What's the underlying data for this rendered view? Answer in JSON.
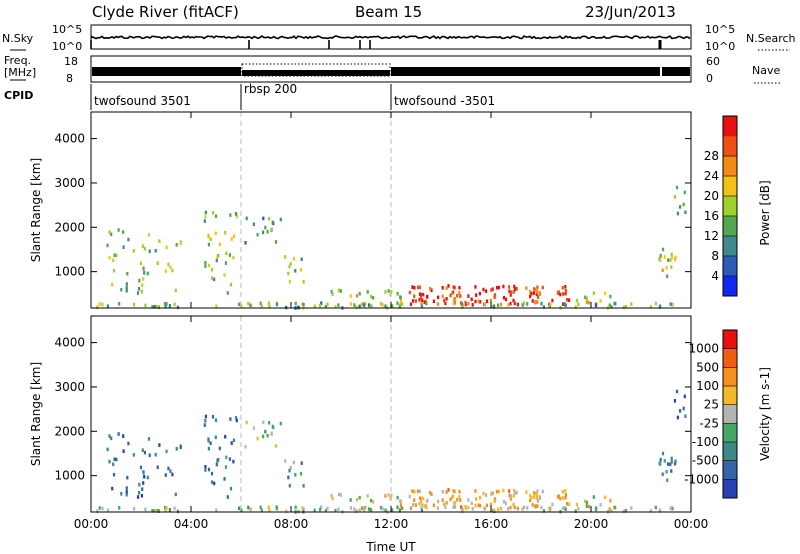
{
  "header": {
    "station": "Clyde River (fitACF)",
    "beam": "Beam 15",
    "date": "23/Jun/2013"
  },
  "panels": {
    "nsky_label": "N.Sky",
    "nsearch_label": "N.Search",
    "freq_label_line1": "Freq.",
    "freq_label_line2": "[MHz]",
    "nave_label": "Nave",
    "cpid_label": "CPID",
    "nsky_ticks": [
      "10^5",
      "10^0"
    ],
    "nsearch_ticks": [
      "10^5",
      "10^0"
    ],
    "freq_ticks": [
      "18",
      "8"
    ],
    "nave_ticks": [
      "60",
      "0"
    ],
    "cpid_segments": [
      {
        "label": "twofsound 3501",
        "start_hour": 0
      },
      {
        "label": "rbsp 200",
        "start_hour": 6
      },
      {
        "label": "twofsound -3501",
        "start_hour": 12
      }
    ]
  },
  "chart_data": [
    {
      "type": "heatmap",
      "name": "power",
      "ylabel": "Slant Range [km]",
      "xlabel": "",
      "xlim": [
        0,
        24
      ],
      "ylim": [
        180,
        4600
      ],
      "yticks": [
        "1000",
        "2000",
        "3000",
        "4000"
      ],
      "colorbar_label": "Power [dB]",
      "colorbar_ticks": [
        "4",
        "8",
        "12",
        "16",
        "20",
        "24",
        "28"
      ],
      "colorbar_colors": [
        "#1028f0",
        "#2a5cb8",
        "#3f8a8c",
        "#52a850",
        "#9ed12a",
        "#f2c21a",
        "#f58a12",
        "#ee5014",
        "#e81010"
      ]
    },
    {
      "type": "heatmap",
      "name": "velocity",
      "ylabel": "Slant Range [km]",
      "xlabel": "Time UT",
      "xlim": [
        0,
        24
      ],
      "ylim": [
        180,
        4600
      ],
      "yticks": [
        "1000",
        "2000",
        "3000",
        "4000"
      ],
      "xticks": [
        "00:00",
        "04:00",
        "08:00",
        "12:00",
        "16:00",
        "20:00",
        "00:00"
      ],
      "colorbar_label": "Velocity [m s-1]",
      "colorbar_ticks": [
        "1000",
        "500",
        "100",
        "25",
        "-25",
        "-100",
        "-500",
        "-1000"
      ],
      "colorbar_colors": [
        "#2a3fb4",
        "#3465ac",
        "#3a8a88",
        "#47a866",
        "#b4b4b4",
        "#f5b82a",
        "#f59020",
        "#ee6010",
        "#e81010"
      ]
    }
  ]
}
